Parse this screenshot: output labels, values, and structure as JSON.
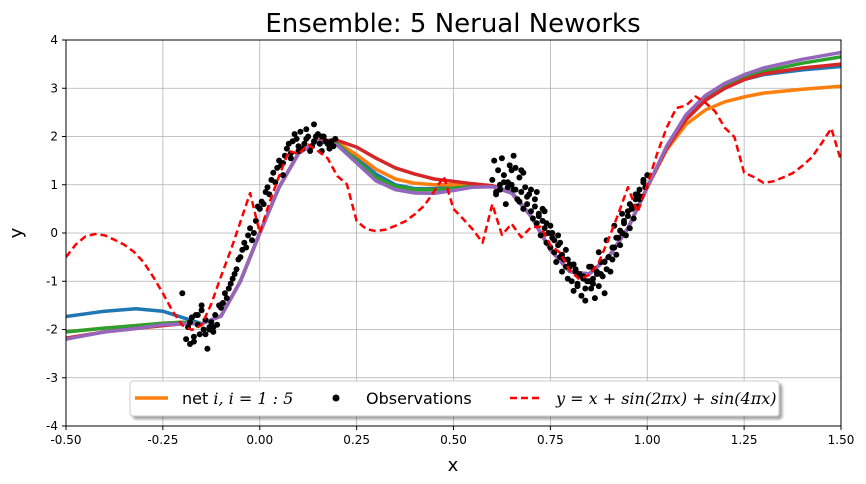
{
  "chart_data": {
    "type": "line",
    "title": "Ensemble: 5 Nerual Neworks",
    "xlabel": "x",
    "ylabel": "y",
    "xlim": [
      -0.5,
      1.5
    ],
    "ylim": [
      -4,
      4
    ],
    "xticks": [
      "-0.50",
      "-0.25",
      "0.00",
      "0.25",
      "0.50",
      "0.75",
      "1.00",
      "1.25",
      "1.50"
    ],
    "xtick_values": [
      -0.5,
      -0.25,
      0.0,
      0.25,
      0.5,
      0.75,
      1.0,
      1.25,
      1.5
    ],
    "yticks": [
      "-4",
      "-3",
      "-2",
      "-1",
      "0",
      "1",
      "2",
      "3",
      "4"
    ],
    "ytick_values": [
      -4,
      -3,
      -2,
      -1,
      0,
      1,
      2,
      3,
      4
    ],
    "grid": true,
    "legend": {
      "placement": "lower-center",
      "ncol": 3,
      "entries": [
        {
          "label_prefix": "net ",
          "label_math": "i, i = 1 : 5",
          "style": "solid",
          "color": "#ff7f0e"
        },
        {
          "label_text": "Observations",
          "style": "markers",
          "color": "#000000"
        },
        {
          "label_math": "y = x + sin(2πx) + sin(4πx)",
          "style": "dashed",
          "color": "#ff0000"
        }
      ]
    },
    "series": [
      {
        "color": "#1f77b4",
        "style": "solid",
        "x": [
          -0.5,
          -0.4,
          -0.32,
          -0.25,
          -0.2,
          -0.15,
          -0.1,
          -0.05,
          0.0,
          0.05,
          0.1,
          0.15,
          0.2,
          0.25,
          0.3,
          0.35,
          0.4,
          0.45,
          0.5,
          0.55,
          0.6,
          0.65,
          0.7,
          0.75,
          0.8,
          0.85,
          0.9,
          0.95,
          1.0,
          1.05,
          1.1,
          1.15,
          1.2,
          1.25,
          1.3,
          1.4,
          1.5
        ],
        "y": [
          -1.73,
          -1.62,
          -1.57,
          -1.62,
          -1.75,
          -1.88,
          -1.72,
          -1.0,
          0.0,
          0.95,
          1.65,
          1.9,
          1.85,
          1.55,
          1.22,
          1.0,
          0.92,
          0.92,
          0.95,
          0.98,
          0.98,
          0.85,
          0.35,
          -0.35,
          -0.8,
          -0.85,
          -0.5,
          0.1,
          0.95,
          1.75,
          2.35,
          2.75,
          3.0,
          3.18,
          3.28,
          3.38,
          3.45
        ]
      },
      {
        "color": "#ff7f0e",
        "style": "solid",
        "x": [
          -0.5,
          -0.4,
          -0.32,
          -0.25,
          -0.2,
          -0.15,
          -0.1,
          -0.05,
          0.0,
          0.05,
          0.1,
          0.15,
          0.2,
          0.25,
          0.3,
          0.35,
          0.4,
          0.45,
          0.5,
          0.55,
          0.6,
          0.65,
          0.7,
          0.75,
          0.8,
          0.85,
          0.9,
          0.95,
          1.0,
          1.05,
          1.1,
          1.15,
          1.2,
          1.25,
          1.3,
          1.4,
          1.5
        ],
        "y": [
          -2.05,
          -1.97,
          -1.92,
          -1.87,
          -1.85,
          -1.88,
          -1.72,
          -1.0,
          0.0,
          0.95,
          1.65,
          1.9,
          1.88,
          1.62,
          1.32,
          1.12,
          1.03,
          1.0,
          1.0,
          1.0,
          0.97,
          0.83,
          0.35,
          -0.35,
          -0.8,
          -0.85,
          -0.5,
          0.1,
          0.95,
          1.72,
          2.25,
          2.55,
          2.72,
          2.82,
          2.9,
          2.98,
          3.04
        ]
      },
      {
        "color": "#2ca02c",
        "style": "solid",
        "x": [
          -0.5,
          -0.4,
          -0.32,
          -0.25,
          -0.2,
          -0.15,
          -0.1,
          -0.05,
          0.0,
          0.05,
          0.1,
          0.15,
          0.2,
          0.25,
          0.3,
          0.35,
          0.4,
          0.45,
          0.5,
          0.55,
          0.6,
          0.65,
          0.7,
          0.75,
          0.8,
          0.85,
          0.9,
          0.95,
          1.0,
          1.05,
          1.1,
          1.15,
          1.2,
          1.25,
          1.3,
          1.4,
          1.5
        ],
        "y": [
          -2.05,
          -1.97,
          -1.92,
          -1.87,
          -1.85,
          -1.88,
          -1.72,
          -1.0,
          0.0,
          0.95,
          1.65,
          1.9,
          1.85,
          1.5,
          1.15,
          0.97,
          0.9,
          0.9,
          0.93,
          0.97,
          0.97,
          0.83,
          0.35,
          -0.35,
          -0.8,
          -0.85,
          -0.5,
          0.1,
          0.95,
          1.78,
          2.4,
          2.8,
          3.05,
          3.22,
          3.35,
          3.52,
          3.65
        ]
      },
      {
        "color": "#d62728",
        "style": "solid",
        "x": [
          -0.5,
          -0.4,
          -0.32,
          -0.25,
          -0.2,
          -0.15,
          -0.1,
          -0.05,
          0.0,
          0.05,
          0.1,
          0.15,
          0.2,
          0.25,
          0.3,
          0.35,
          0.4,
          0.45,
          0.5,
          0.55,
          0.6,
          0.65,
          0.7,
          0.75,
          0.8,
          0.85,
          0.9,
          0.95,
          1.0,
          1.05,
          1.1,
          1.15,
          1.2,
          1.25,
          1.3,
          1.4,
          1.5
        ],
        "y": [
          -2.18,
          -2.05,
          -1.98,
          -1.92,
          -1.88,
          -1.88,
          -1.72,
          -1.0,
          0.0,
          0.95,
          1.65,
          1.92,
          1.92,
          1.78,
          1.55,
          1.35,
          1.22,
          1.12,
          1.07,
          1.02,
          0.98,
          0.83,
          0.35,
          -0.35,
          -0.8,
          -0.85,
          -0.5,
          0.1,
          0.95,
          1.75,
          2.35,
          2.75,
          3.0,
          3.18,
          3.3,
          3.42,
          3.5
        ]
      },
      {
        "color": "#9467bd",
        "style": "solid",
        "x": [
          -0.5,
          -0.4,
          -0.32,
          -0.25,
          -0.2,
          -0.15,
          -0.1,
          -0.05,
          0.0,
          0.05,
          0.1,
          0.15,
          0.2,
          0.25,
          0.3,
          0.35,
          0.4,
          0.45,
          0.5,
          0.55,
          0.6,
          0.65,
          0.7,
          0.75,
          0.8,
          0.85,
          0.9,
          0.95,
          1.0,
          1.05,
          1.1,
          1.15,
          1.2,
          1.25,
          1.3,
          1.4,
          1.5
        ],
        "y": [
          -2.2,
          -2.05,
          -1.98,
          -1.9,
          -1.88,
          -1.88,
          -1.72,
          -1.0,
          0.0,
          0.95,
          1.65,
          1.9,
          1.82,
          1.45,
          1.08,
          0.9,
          0.83,
          0.82,
          0.88,
          0.95,
          0.96,
          0.83,
          0.35,
          -0.35,
          -0.8,
          -0.85,
          -0.5,
          0.1,
          0.95,
          1.8,
          2.45,
          2.85,
          3.1,
          3.28,
          3.42,
          3.6,
          3.74
        ]
      },
      {
        "name": "y = x + sin(2πx) + sin(4πx)",
        "color": "#ff0000",
        "style": "dashed",
        "x": [
          -0.5,
          -0.475,
          -0.45,
          -0.425,
          -0.4,
          -0.375,
          -0.35,
          -0.325,
          -0.3,
          -0.275,
          -0.25,
          -0.225,
          -0.2,
          -0.175,
          -0.15,
          -0.125,
          -0.1,
          -0.075,
          -0.05,
          -0.025,
          0.0,
          0.025,
          0.05,
          0.075,
          0.1,
          0.125,
          0.15,
          0.175,
          0.2,
          0.225,
          0.25,
          0.275,
          0.3,
          0.325,
          0.35,
          0.375,
          0.4,
          0.425,
          0.45,
          0.475,
          0.5,
          0.525,
          0.55,
          0.575,
          0.6,
          0.625,
          0.65,
          0.675,
          0.7,
          0.725,
          0.75,
          0.775,
          0.8,
          0.825,
          0.85,
          0.875,
          0.9,
          0.925,
          0.95,
          0.975,
          1.0,
          1.025,
          1.05,
          1.075,
          1.1,
          1.125,
          1.15,
          1.175,
          1.2,
          1.225,
          1.25,
          1.275,
          1.3,
          1.325,
          1.35,
          1.375,
          1.4,
          1.425,
          1.45,
          1.475,
          1.5
        ],
        "y": [
          -0.5,
          -0.24,
          -0.07,
          -0.02,
          -0.05,
          -0.14,
          -0.24,
          -0.39,
          -0.6,
          -0.91,
          -1.25,
          -1.62,
          -1.91,
          -2.01,
          -1.91,
          -1.47,
          -0.9,
          -0.36,
          0.23,
          0.83,
          0.0,
          0.63,
          1.18,
          1.7,
          1.64,
          1.83,
          1.7,
          1.55,
          1.18,
          1.01,
          0.25,
          0.08,
          0.04,
          0.07,
          0.15,
          0.24,
          0.39,
          0.57,
          0.86,
          1.17,
          0.5,
          0.29,
          0.07,
          -0.2,
          0.6,
          -0.04,
          0.19,
          -0.09,
          0.12,
          0.13,
          -0.25,
          -0.41,
          -0.78,
          -0.96,
          -0.87,
          -0.61,
          -0.13,
          0.39,
          0.95,
          0.43,
          1.0,
          1.63,
          2.18,
          2.59,
          2.64,
          2.83,
          2.7,
          2.52,
          2.18,
          1.99,
          1.25,
          1.16,
          1.04,
          1.07,
          1.15,
          1.24,
          1.39,
          1.57,
          1.86,
          2.17,
          1.5
        ]
      }
    ],
    "observations": {
      "color": "#000000",
      "x": [
        -0.2,
        -0.19,
        -0.185,
        -0.18,
        -0.175,
        -0.17,
        -0.165,
        -0.16,
        -0.155,
        -0.15,
        -0.145,
        -0.14,
        -0.135,
        -0.13,
        -0.125,
        -0.12,
        -0.115,
        -0.11,
        -0.105,
        -0.1,
        -0.095,
        -0.09,
        -0.085,
        -0.08,
        -0.075,
        -0.07,
        -0.065,
        -0.06,
        -0.055,
        -0.05,
        -0.045,
        -0.04,
        -0.035,
        -0.03,
        -0.025,
        -0.02,
        -0.015,
        -0.01,
        -0.005,
        0.0,
        0.005,
        0.01,
        0.015,
        0.02,
        0.025,
        0.03,
        0.035,
        0.04,
        0.045,
        0.05,
        0.055,
        0.06,
        0.065,
        0.07,
        0.075,
        0.08,
        0.085,
        0.09,
        0.095,
        0.1,
        0.105,
        0.11,
        0.115,
        0.12,
        0.125,
        0.13,
        0.135,
        0.14,
        0.145,
        0.15,
        0.155,
        0.16,
        0.165,
        0.17,
        0.175,
        0.18,
        0.185,
        0.19,
        0.195,
        -0.18,
        -0.16,
        -0.14,
        -0.12,
        -0.17,
        -0.15,
        -0.13,
        0.06,
        0.1,
        0.14,
        0.18,
        0.12,
        0.16,
        0.08,
        0.6,
        0.605,
        0.61,
        0.615,
        0.62,
        0.625,
        0.63,
        0.635,
        0.64,
        0.645,
        0.65,
        0.655,
        0.66,
        0.665,
        0.67,
        0.675,
        0.68,
        0.685,
        0.69,
        0.695,
        0.7,
        0.705,
        0.71,
        0.715,
        0.72,
        0.725,
        0.73,
        0.735,
        0.74,
        0.745,
        0.75,
        0.755,
        0.76,
        0.765,
        0.77,
        0.775,
        0.78,
        0.785,
        0.79,
        0.795,
        0.8,
        0.805,
        0.81,
        0.815,
        0.82,
        0.825,
        0.83,
        0.835,
        0.84,
        0.845,
        0.85,
        0.855,
        0.86,
        0.865,
        0.87,
        0.875,
        0.88,
        0.885,
        0.89,
        0.895,
        0.9,
        0.905,
        0.91,
        0.915,
        0.92,
        0.925,
        0.93,
        0.935,
        0.94,
        0.945,
        0.95,
        0.955,
        0.96,
        0.965,
        0.97,
        0.975,
        0.98,
        0.985,
        0.99,
        0.995,
        1.0,
        0.61,
        0.63,
        0.65,
        0.67,
        0.69,
        0.71,
        0.73,
        0.75,
        0.77,
        0.79,
        0.81,
        0.83,
        0.85,
        0.87,
        0.89,
        0.91,
        0.93,
        0.95,
        0.97,
        0.99,
        0.62,
        0.64,
        0.66,
        0.68,
        0.7,
        0.72,
        0.74,
        0.76,
        0.78,
        0.8,
        0.82,
        0.84,
        0.86,
        0.88,
        0.9,
        0.92,
        0.94,
        0.96,
        0.98,
        0.655,
        0.675,
        0.715,
        0.735,
        0.755,
        0.775,
        0.795,
        0.815,
        0.835,
        0.855,
        0.875,
        0.895,
        0.915,
        0.935,
        0.955,
        0.975
      ],
      "y": [
        -1.25,
        -2.2,
        -1.95,
        -2.3,
        -1.75,
        -2.15,
        -1.7,
        -1.9,
        -2.1,
        -1.5,
        -2.0,
        -1.8,
        -2.4,
        -1.95,
        -1.85,
        -2.05,
        -1.7,
        -1.9,
        -1.5,
        -1.55,
        -1.45,
        -1.25,
        -1.35,
        -1.15,
        -1.05,
        -0.95,
        -0.85,
        -0.75,
        -0.55,
        -0.5,
        -0.35,
        -0.2,
        -0.3,
        -0.05,
        0.1,
        -0.15,
        0.0,
        0.25,
        0.55,
        0.5,
        0.65,
        0.6,
        0.85,
        0.95,
        0.8,
        1.1,
        1.25,
        1.05,
        1.35,
        1.5,
        1.4,
        1.45,
        1.6,
        1.75,
        1.85,
        1.65,
        1.9,
        2.05,
        1.95,
        1.8,
        2.1,
        1.75,
        1.85,
        1.95,
        2.0,
        1.7,
        1.8,
        1.9,
        2.0,
        2.05,
        1.85,
        1.7,
        2.0,
        1.9,
        1.85,
        1.75,
        1.9,
        1.8,
        1.95,
        -1.85,
        -1.7,
        -2.1,
        -1.95,
        -2.25,
        -1.6,
        -2.0,
        1.2,
        1.7,
        2.25,
        1.8,
        2.15,
        2.0,
        1.55,
        1.1,
        1.5,
        0.8,
        1.3,
        0.9,
        1.55,
        1.2,
        0.6,
        1.05,
        1.4,
        1.0,
        1.6,
        0.9,
        0.7,
        1.15,
        0.85,
        0.5,
        0.95,
        0.6,
        0.8,
        0.45,
        0.3,
        0.7,
        0.2,
        0.4,
        -0.05,
        0.25,
        0.1,
        -0.2,
        0.0,
        -0.3,
        -0.1,
        -0.4,
        -0.6,
        -0.25,
        -0.5,
        -0.8,
        -0.55,
        -0.7,
        -0.95,
        -0.65,
        -1.0,
        -1.2,
        -0.75,
        -1.05,
        -0.85,
        -1.3,
        -0.9,
        -1.4,
        -1.0,
        -0.7,
        -1.15,
        -0.95,
        -1.35,
        -0.85,
        -1.1,
        -0.6,
        -0.9,
        -1.25,
        -0.75,
        -0.5,
        -0.8,
        -0.55,
        -0.3,
        -0.45,
        -0.1,
        -0.25,
        0.0,
        0.2,
        -0.05,
        0.35,
        0.1,
        0.5,
        0.3,
        0.7,
        0.55,
        0.9,
        0.75,
        1.1,
        0.95,
        1.2,
        0.85,
        1.05,
        1.3,
        0.65,
        0.75,
        0.55,
        0.5,
        0.15,
        -0.05,
        -0.35,
        -0.65,
        -0.9,
        -1.0,
        -0.8,
        -0.6,
        -0.3,
        0.05,
        0.45,
        0.8,
        1.05,
        1.0,
        0.95,
        1.35,
        1.25,
        0.9,
        0.35,
        0.2,
        -0.15,
        -0.45,
        -0.7,
        -1.1,
        -1.15,
        -1.05,
        -0.85,
        -0.5,
        -0.1,
        0.25,
        0.55,
        0.7,
        0.9,
        1.3,
        0.85,
        0.45,
        0.0,
        -0.2,
        -0.55,
        -0.8,
        -0.95,
        -0.7,
        -0.4,
        -0.15,
        0.15,
        0.4,
        0.6,
        0.8
      ]
    }
  }
}
